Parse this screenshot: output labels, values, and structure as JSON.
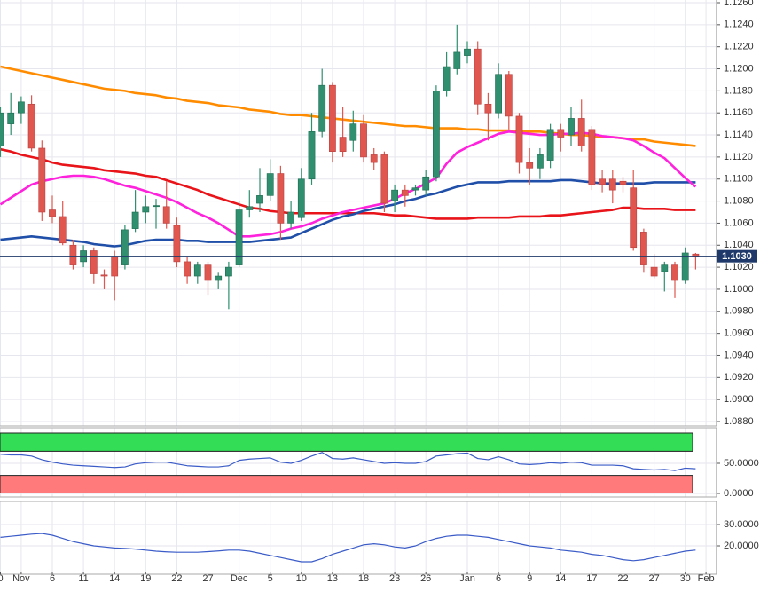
{
  "chart_data": [
    {
      "type": "candlestick",
      "categories": [
        "0",
        null,
        "Nov",
        null,
        null,
        "6",
        null,
        null,
        "11",
        null,
        null,
        "14",
        null,
        null,
        "19",
        null,
        null,
        "22",
        null,
        null,
        "27",
        null,
        null,
        "Dec",
        null,
        null,
        "5",
        null,
        null,
        "10",
        null,
        null,
        "13",
        null,
        null,
        "18",
        null,
        null,
        "23",
        null,
        null,
        "26",
        null,
        null,
        null,
        "Jan",
        null,
        null,
        "6",
        null,
        null,
        "9",
        null,
        null,
        "14",
        null,
        null,
        "17",
        null,
        null,
        "22",
        null,
        null,
        "27",
        null,
        null,
        "30",
        null,
        "Feb"
      ],
      "open": [
        1.113,
        1.115,
        1.116,
        1.1168,
        1.1128,
        1.1072,
        1.1066,
        1.104,
        1.1025,
        1.1035,
        1.1013,
        1.103,
        1.1022,
        1.1055,
        1.107,
        1.1075,
        1.1075,
        1.1058,
        1.1025,
        1.1012,
        1.1022,
        1.1008,
        1.1012,
        1.1022,
        1.1072,
        1.1078,
        1.1085,
        1.1105,
        1.106,
        1.1065,
        1.11,
        1.1143,
        1.1185,
        1.1138,
        1.1135,
        1.115,
        1.1122,
        1.1122,
        1.108,
        1.109,
        1.109,
        1.109,
        1.1102,
        1.118,
        1.12,
        1.1212,
        1.1218,
        1.1168,
        1.116,
        1.1195,
        1.1157,
        1.1115,
        1.111,
        1.1117,
        1.1145,
        1.114,
        1.1155,
        1.1145,
        1.11,
        1.11,
        1.1098,
        1.1092,
        1.1052,
        1.102,
        1.1016,
        1.1022,
        1.1008,
        1.1032,
        null
      ],
      "high": [
        1.1165,
        1.1178,
        1.1175,
        1.1176,
        1.1135,
        1.1085,
        1.108,
        1.1045,
        1.104,
        1.1038,
        1.1018,
        1.1035,
        1.1058,
        1.109,
        1.1085,
        1.1082,
        1.1098,
        1.1065,
        1.103,
        1.1025,
        1.1025,
        1.1015,
        1.1025,
        1.108,
        1.109,
        1.111,
        1.1118,
        1.1112,
        1.108,
        1.111,
        1.116,
        1.12,
        1.1188,
        1.1165,
        1.1162,
        1.1158,
        1.1128,
        1.1125,
        1.1095,
        1.1095,
        1.1095,
        1.1108,
        1.1185,
        1.1215,
        1.124,
        1.1225,
        1.1225,
        1.1178,
        1.1205,
        1.1198,
        1.116,
        1.1128,
        1.1128,
        1.115,
        1.115,
        1.1165,
        1.1172,
        1.1148,
        1.1108,
        1.1108,
        1.1102,
        1.1108,
        1.1055,
        1.1032,
        1.1025,
        1.1025,
        1.1038,
        1.1033,
        null
      ],
      "low": [
        1.112,
        1.114,
        1.115,
        1.1125,
        1.1062,
        1.106,
        1.104,
        1.1018,
        1.102,
        1.1005,
        1.1,
        1.099,
        1.1018,
        1.1052,
        1.106,
        1.1055,
        1.1055,
        1.102,
        1.1005,
        1.1005,
        1.0995,
        1.1,
        1.0982,
        1.102,
        1.1065,
        1.107,
        1.108,
        1.1045,
        1.1055,
        1.1062,
        1.1095,
        1.1138,
        1.1115,
        1.112,
        1.1125,
        1.1115,
        1.1108,
        1.107,
        1.107,
        1.1075,
        1.1085,
        1.1085,
        1.1098,
        1.1175,
        1.1195,
        1.1205,
        1.1158,
        1.1135,
        1.1155,
        1.1145,
        1.1105,
        1.1095,
        1.11,
        1.111,
        1.1125,
        1.113,
        1.1125,
        1.109,
        1.1088,
        1.1078,
        1.1088,
        1.1035,
        1.1015,
        1.101,
        1.0998,
        1.0992,
        1.1005,
        1.1018,
        null
      ],
      "close": [
        1.116,
        1.116,
        1.117,
        1.1128,
        1.107,
        1.1066,
        1.1042,
        1.1022,
        1.1035,
        1.1014,
        1.1012,
        1.1012,
        1.1054,
        1.107,
        1.1075,
        1.1076,
        1.106,
        1.1025,
        1.1012,
        1.1022,
        1.1008,
        1.1012,
        1.102,
        1.1072,
        1.1075,
        1.1085,
        1.1105,
        1.106,
        1.107,
        1.11,
        1.1143,
        1.1185,
        1.1125,
        1.1125,
        1.115,
        1.112,
        1.1115,
        1.1078,
        1.109,
        1.1085,
        1.1092,
        1.1102,
        1.118,
        1.1202,
        1.1215,
        1.1218,
        1.1168,
        1.116,
        1.1195,
        1.1157,
        1.1115,
        1.111,
        1.1122,
        1.1145,
        1.1138,
        1.1155,
        1.113,
        1.1095,
        1.1095,
        1.109,
        1.1095,
        1.1038,
        1.1022,
        1.1012,
        1.1022,
        1.1008,
        1.1033,
        1.103,
        null
      ],
      "up_color": "#2f8f6f",
      "down_color": "#e0574f",
      "series": [
        {
          "color": "#ff8c00",
          "values": [
            1.1202,
            1.12,
            1.1198,
            1.1196,
            1.1194,
            1.1192,
            1.119,
            1.1188,
            1.1186,
            1.1184,
            1.1182,
            1.1181,
            1.118,
            1.1178,
            1.1177,
            1.1176,
            1.1174,
            1.1173,
            1.1171,
            1.117,
            1.1169,
            1.1167,
            1.1166,
            1.1165,
            1.1163,
            1.1162,
            1.1161,
            1.1159,
            1.1158,
            1.1158,
            1.1157,
            1.1156,
            1.1155,
            1.1154,
            1.1153,
            1.1152,
            1.1151,
            1.115,
            1.1149,
            1.1148,
            1.1148,
            1.1147,
            1.1146,
            1.1146,
            1.1146,
            1.1145,
            1.1145,
            1.1144,
            1.1144,
            1.1144,
            1.1143,
            1.1143,
            1.1143,
            1.1142,
            1.1141,
            1.114,
            1.114,
            1.1139,
            1.1138,
            1.1138,
            1.1137,
            1.1136,
            1.1136,
            1.1134,
            1.1133,
            1.1132,
            1.1131,
            1.113,
            null
          ]
        },
        {
          "color": "#e8141a",
          "values": [
            1.1127,
            1.1125,
            1.1122,
            1.112,
            1.1118,
            1.1115,
            1.1113,
            1.1112,
            1.1111,
            1.111,
            1.1108,
            1.1107,
            1.1106,
            1.1105,
            1.1103,
            1.1102,
            1.1099,
            1.1096,
            1.1093,
            1.109,
            1.1086,
            1.1083,
            1.108,
            1.1077,
            1.1074,
            1.1073,
            1.1071,
            1.107,
            1.1069,
            1.1069,
            1.1069,
            1.1069,
            1.1069,
            1.1069,
            1.1069,
            1.1069,
            1.1069,
            1.1068,
            1.1067,
            1.1067,
            1.1066,
            1.1065,
            1.1064,
            1.1064,
            1.1064,
            1.1064,
            1.1065,
            1.1065,
            1.1065,
            1.1065,
            1.1066,
            1.1066,
            1.1066,
            1.1067,
            1.1067,
            1.1068,
            1.1069,
            1.107,
            1.1071,
            1.1072,
            1.1074,
            1.1074,
            1.1073,
            1.1073,
            1.1073,
            1.1072,
            1.1072,
            1.1072,
            null
          ]
        },
        {
          "color": "#1f4fa8",
          "values": [
            1.1045,
            1.1046,
            1.1047,
            1.1048,
            1.1047,
            1.1046,
            1.1045,
            1.1044,
            1.1043,
            1.1041,
            1.104,
            1.1039,
            1.104,
            1.1042,
            1.1044,
            1.1045,
            1.1045,
            1.1045,
            1.1044,
            1.1044,
            1.1043,
            1.1043,
            1.1043,
            1.1043,
            1.1043,
            1.1044,
            1.1045,
            1.1046,
            1.1047,
            1.1051,
            1.1055,
            1.1059,
            1.1063,
            1.1066,
            1.1068,
            1.1071,
            1.1073,
            1.1075,
            1.1077,
            1.108,
            1.1082,
            1.1085,
            1.1087,
            1.109,
            1.1093,
            1.1095,
            1.1097,
            1.1097,
            1.1097,
            1.1098,
            1.1098,
            1.1098,
            1.1098,
            1.1098,
            1.1099,
            1.1099,
            1.1098,
            1.1097,
            1.1096,
            1.1096,
            1.1096,
            1.1096,
            1.1096,
            1.1097,
            1.1097,
            1.1097,
            1.1097,
            1.1097,
            null
          ]
        },
        {
          "color": "#ff22dd",
          "values": [
            1.1077,
            1.1083,
            1.1089,
            1.1095,
            1.1098,
            1.11,
            1.1102,
            1.1103,
            1.1103,
            1.1102,
            1.11,
            1.1097,
            1.1094,
            1.1092,
            1.1089,
            1.1086,
            1.1083,
            1.1079,
            1.1074,
            1.1069,
            1.1065,
            1.106,
            1.1054,
            1.1048,
            1.1048,
            1.1049,
            1.105,
            1.1052,
            1.1055,
            1.1057,
            1.106,
            1.1064,
            1.1067,
            1.107,
            1.1072,
            1.1074,
            1.1076,
            1.1078,
            1.1082,
            1.1087,
            1.1091,
            1.1096,
            1.1101,
            1.1114,
            1.1124,
            1.1129,
            1.1133,
            1.1137,
            1.1141,
            1.1143,
            1.1142,
            1.1141,
            1.114,
            1.114,
            1.1141,
            1.1141,
            1.1142,
            1.1141,
            1.1139,
            1.1138,
            1.1137,
            1.1135,
            1.113,
            1.1124,
            1.1119,
            1.111,
            1.1101,
            1.1093,
            null
          ]
        }
      ],
      "last": {
        "value": 1.103,
        "label": "1.1030",
        "color": "#1f3a6a"
      },
      "ylim": [
        1.088,
        1.126
      ],
      "yticks": [
        {
          "value": 1.088,
          "label": "1.0880"
        },
        {
          "value": 1.09,
          "label": "1.0900"
        },
        {
          "value": 1.092,
          "label": "1.0920"
        },
        {
          "value": 1.094,
          "label": "1.0940"
        },
        {
          "value": 1.096,
          "label": "1.0960"
        },
        {
          "value": 1.098,
          "label": "1.0980"
        },
        {
          "value": 1.1,
          "label": "1.1000"
        },
        {
          "value": 1.102,
          "label": "1.1020"
        },
        {
          "value": 1.104,
          "label": "1.1040"
        },
        {
          "value": 1.106,
          "label": "1.1060"
        },
        {
          "value": 1.108,
          "label": "1.1080"
        },
        {
          "value": 1.11,
          "label": "1.1100"
        },
        {
          "value": 1.112,
          "label": "1.1120"
        },
        {
          "value": 1.114,
          "label": "1.1140"
        },
        {
          "value": 1.116,
          "label": "1.1160"
        },
        {
          "value": 1.118,
          "label": "1.1180"
        },
        {
          "value": 1.12,
          "label": "1.1200"
        },
        {
          "value": 1.122,
          "label": "1.1220"
        },
        {
          "value": 1.124,
          "label": "1.1240"
        },
        {
          "value": 1.126,
          "label": "1.1260"
        }
      ],
      "grid": true
    },
    {
      "type": "line",
      "series": [
        {
          "color": "#3a5bc8",
          "values": [
            65,
            64,
            64,
            62,
            56,
            52,
            49,
            47,
            46,
            45,
            44,
            43,
            44,
            49,
            51,
            52,
            52,
            49,
            46,
            45,
            44,
            44,
            46,
            55,
            57,
            58,
            59,
            52,
            50,
            55,
            62,
            68,
            58,
            57,
            59,
            56,
            53,
            50,
            51,
            50,
            50,
            53,
            62,
            64,
            66,
            67,
            58,
            56,
            61,
            56,
            49,
            48,
            49,
            51,
            50,
            52,
            51,
            47,
            47,
            47,
            46,
            41,
            40,
            39,
            40,
            38,
            42,
            41,
            null
          ]
        }
      ],
      "bands": [
        {
          "from": 70,
          "to": 100,
          "color": "#33dd55"
        },
        {
          "from": 0,
          "to": 30,
          "color": "#ff7a7a"
        }
      ],
      "ylim": [
        0,
        100
      ],
      "yticks": [
        {
          "value": 0,
          "label": "0.0000"
        },
        {
          "value": 50,
          "label": "50.0000"
        }
      ],
      "grid": true
    },
    {
      "type": "line",
      "series": [
        {
          "color": "#3a5bc8",
          "values": [
            24,
            24.5,
            25,
            25.5,
            25.8,
            25,
            23.5,
            22,
            21,
            20,
            19.5,
            19,
            18.8,
            18.5,
            18,
            17.5,
            17.2,
            17,
            17,
            17,
            17.3,
            17.6,
            18,
            18,
            17.5,
            16.5,
            15.5,
            14.5,
            13.5,
            12.5,
            12.5,
            14,
            16,
            17.5,
            19,
            20.5,
            21,
            20.5,
            19.5,
            19,
            20,
            22,
            23.5,
            24.5,
            25,
            25,
            24.5,
            24,
            23,
            22,
            21,
            20,
            19.5,
            19,
            18,
            17.5,
            17,
            16,
            15.5,
            14.5,
            13.5,
            13,
            13.5,
            14.5,
            15.5,
            16.5,
            17.5,
            18,
            null
          ]
        }
      ],
      "ylim": [
        7.5,
        40
      ],
      "yticks": [
        {
          "value": 20,
          "label": "20.0000"
        },
        {
          "value": 30,
          "label": "30.0000"
        }
      ],
      "grid": true
    }
  ]
}
